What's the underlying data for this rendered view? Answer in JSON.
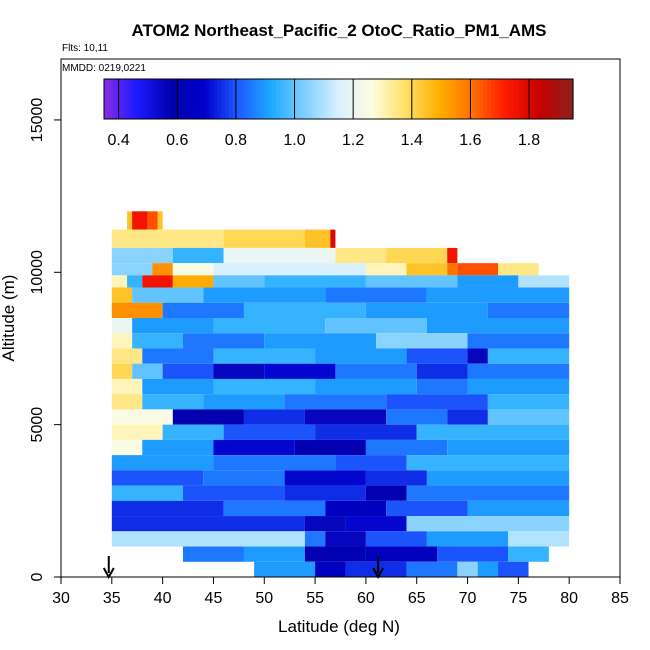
{
  "chart_data": {
    "type": "heatmap",
    "title": "ATOM2 Northeast_Pacific_2 OtoC_Ratio_PM1_AMS",
    "flights_label": "Flts: 10,11",
    "dates_label": "MMDD: 0219,0221",
    "xlabel": "Latitude (deg N)",
    "ylabel": "Altitude (m)",
    "xlim": [
      30,
      85
    ],
    "ylim": [
      0,
      17000
    ],
    "xticks": [
      "30",
      "35",
      "40",
      "45",
      "50",
      "55",
      "60",
      "65",
      "70",
      "75",
      "80",
      "85"
    ],
    "yticks": [
      "0",
      "5000",
      "10000",
      "15000"
    ],
    "colorbar": {
      "range": [
        0.35,
        1.95
      ],
      "tick_values": [
        0.4,
        0.6,
        0.8,
        1.0,
        1.2,
        1.4,
        1.6,
        1.8
      ],
      "tick_labels": [
        "0.4",
        "0.6",
        "0.8",
        "1.0",
        "1.2",
        "1.4",
        "1.6",
        "1.8"
      ],
      "colors": [
        "#8a2be2",
        "#1a1aff",
        "#0000aa",
        "#0000cc",
        "#1e5aff",
        "#1eaaff",
        "#7fcfff",
        "#d8f0ff",
        "#fffde0",
        "#ffe066",
        "#ffb000",
        "#ff7000",
        "#ff1a00",
        "#c80000",
        "#8b2020"
      ]
    },
    "arrows": [
      34.7,
      61.2
    ],
    "layers": [
      {
        "y0": 11400,
        "y1": 12000,
        "segments": [
          [
            36.5,
            40,
            1.45
          ],
          [
            37,
            38.5,
            1.75
          ],
          [
            38.5,
            39.5,
            1.65
          ]
        ]
      },
      {
        "y0": 10800,
        "y1": 11400,
        "segments": [
          [
            35,
            46,
            1.35
          ],
          [
            46,
            54,
            1.4
          ],
          [
            54,
            56.5,
            1.45
          ],
          [
            56.5,
            57,
            1.8
          ]
        ]
      },
      {
        "y0": 10300,
        "y1": 10800,
        "segments": [
          [
            35,
            41,
            1.05
          ],
          [
            41,
            46,
            0.95
          ],
          [
            46,
            57,
            1.2
          ],
          [
            57,
            62,
            1.35
          ],
          [
            62,
            68,
            1.4
          ],
          [
            68,
            69,
            1.75
          ]
        ]
      },
      {
        "y0": 9900,
        "y1": 10300,
        "segments": [
          [
            35,
            39,
            1.05
          ],
          [
            39,
            41,
            1.55
          ],
          [
            41,
            45,
            1.25
          ],
          [
            45,
            53,
            1.15
          ],
          [
            53,
            60,
            1.15
          ],
          [
            60,
            64,
            1.3
          ],
          [
            64,
            68,
            1.45
          ],
          [
            68,
            69,
            1.6
          ],
          [
            69,
            73,
            1.65
          ],
          [
            73,
            77,
            1.35
          ]
        ]
      },
      {
        "y0": 9500,
        "y1": 9900,
        "segments": [
          [
            35,
            36.5,
            1.3
          ],
          [
            36.5,
            38,
            0.95
          ],
          [
            38,
            41,
            1.75
          ],
          [
            41,
            45,
            1.5
          ],
          [
            45,
            50,
            1.0
          ],
          [
            50,
            60,
            0.95
          ],
          [
            60,
            69,
            1.0
          ],
          [
            69,
            75,
            0.9
          ],
          [
            75,
            80,
            1.1
          ]
        ]
      },
      {
        "y0": 9000,
        "y1": 9500,
        "segments": [
          [
            35,
            37,
            1.45
          ],
          [
            37,
            44,
            1.0
          ],
          [
            44,
            56,
            0.9
          ],
          [
            56,
            66,
            0.85
          ],
          [
            66,
            80,
            0.9
          ]
        ]
      },
      {
        "y0": 8500,
        "y1": 9000,
        "segments": [
          [
            35,
            40,
            1.55
          ],
          [
            40,
            48,
            0.85
          ],
          [
            48,
            60,
            0.95
          ],
          [
            60,
            72,
            0.9
          ],
          [
            72,
            80,
            0.85
          ]
        ]
      },
      {
        "y0": 8000,
        "y1": 8500,
        "segments": [
          [
            35,
            37,
            1.2
          ],
          [
            37,
            45,
            0.9
          ],
          [
            45,
            56,
            0.95
          ],
          [
            56,
            66,
            1.0
          ],
          [
            66,
            80,
            0.9
          ]
        ]
      },
      {
        "y0": 7500,
        "y1": 8000,
        "segments": [
          [
            35,
            37,
            1.3
          ],
          [
            37,
            42,
            0.95
          ],
          [
            42,
            50,
            0.85
          ],
          [
            50,
            61,
            0.9
          ],
          [
            61,
            70,
            1.05
          ],
          [
            70,
            80,
            0.85
          ]
        ]
      },
      {
        "y0": 7000,
        "y1": 7500,
        "segments": [
          [
            35,
            38,
            1.35
          ],
          [
            38,
            45,
            0.85
          ],
          [
            45,
            55,
            0.95
          ],
          [
            55,
            64,
            0.9
          ],
          [
            64,
            70,
            0.8
          ],
          [
            70,
            72,
            0.55
          ],
          [
            72,
            80,
            0.95
          ]
        ]
      },
      {
        "y0": 6500,
        "y1": 7000,
        "segments": [
          [
            35,
            37,
            1.4
          ],
          [
            37,
            40,
            1.0
          ],
          [
            40,
            45,
            0.8
          ],
          [
            45,
            50,
            0.55
          ],
          [
            50,
            57,
            0.7
          ],
          [
            57,
            65,
            0.85
          ],
          [
            65,
            70,
            0.75
          ],
          [
            70,
            80,
            0.85
          ]
        ]
      },
      {
        "y0": 6000,
        "y1": 6500,
        "segments": [
          [
            35,
            38,
            1.3
          ],
          [
            38,
            45,
            0.9
          ],
          [
            45,
            55,
            0.95
          ],
          [
            55,
            65,
            0.9
          ],
          [
            65,
            70,
            0.85
          ],
          [
            70,
            80,
            0.9
          ]
        ]
      },
      {
        "y0": 5500,
        "y1": 6000,
        "segments": [
          [
            35,
            38,
            1.35
          ],
          [
            38,
            44,
            0.95
          ],
          [
            44,
            52,
            0.9
          ],
          [
            52,
            62,
            0.85
          ],
          [
            62,
            72,
            0.8
          ],
          [
            72,
            80,
            0.95
          ]
        ]
      },
      {
        "y0": 5000,
        "y1": 5500,
        "segments": [
          [
            35,
            41,
            1.25
          ],
          [
            41,
            48,
            0.6
          ],
          [
            48,
            54,
            0.75
          ],
          [
            54,
            62,
            0.55
          ],
          [
            62,
            68,
            0.85
          ],
          [
            68,
            72,
            0.75
          ],
          [
            72,
            80,
            1.0
          ]
        ]
      },
      {
        "y0": 4500,
        "y1": 5000,
        "segments": [
          [
            35,
            40,
            1.3
          ],
          [
            40,
            46,
            0.95
          ],
          [
            46,
            55,
            0.8
          ],
          [
            55,
            65,
            0.75
          ],
          [
            65,
            80,
            0.95
          ]
        ]
      },
      {
        "y0": 4000,
        "y1": 4500,
        "segments": [
          [
            35,
            38,
            1.25
          ],
          [
            38,
            45,
            0.9
          ],
          [
            45,
            53,
            0.7
          ],
          [
            53,
            60,
            0.6
          ],
          [
            60,
            68,
            0.85
          ],
          [
            68,
            80,
            0.9
          ]
        ]
      },
      {
        "y0": 3500,
        "y1": 4000,
        "segments": [
          [
            35,
            45,
            0.9
          ],
          [
            45,
            57,
            0.85
          ],
          [
            57,
            64,
            0.8
          ],
          [
            64,
            80,
            0.95
          ]
        ]
      },
      {
        "y0": 3000,
        "y1": 3500,
        "segments": [
          [
            35,
            44,
            0.8
          ],
          [
            44,
            52,
            0.85
          ],
          [
            52,
            60,
            0.7
          ],
          [
            60,
            66,
            0.75
          ],
          [
            66,
            80,
            0.9
          ]
        ]
      },
      {
        "y0": 2500,
        "y1": 3000,
        "segments": [
          [
            35,
            42,
            0.95
          ],
          [
            42,
            52,
            0.8
          ],
          [
            52,
            60,
            0.75
          ],
          [
            60,
            64,
            0.6
          ],
          [
            64,
            80,
            0.85
          ]
        ]
      },
      {
        "y0": 2000,
        "y1": 2500,
        "segments": [
          [
            35,
            46,
            0.75
          ],
          [
            46,
            56,
            0.85
          ],
          [
            56,
            62,
            0.65
          ],
          [
            62,
            70,
            0.8
          ],
          [
            70,
            80,
            0.9
          ]
        ]
      },
      {
        "y0": 1500,
        "y1": 2000,
        "segments": [
          [
            35,
            54,
            0.75
          ],
          [
            54,
            58,
            0.55
          ],
          [
            58,
            64,
            0.7
          ],
          [
            64,
            80,
            1.05
          ]
        ]
      },
      {
        "y0": 1000,
        "y1": 1500,
        "segments": [
          [
            35,
            54,
            1.1
          ],
          [
            54,
            56,
            0.85
          ],
          [
            56,
            60,
            0.55
          ],
          [
            60,
            66,
            0.8
          ],
          [
            66,
            74,
            0.9
          ],
          [
            74,
            80,
            1.1
          ]
        ]
      },
      {
        "y0": 500,
        "y1": 1000,
        "segments": [
          [
            42,
            48,
            0.85
          ],
          [
            48,
            54,
            0.9
          ],
          [
            54,
            60,
            0.6
          ],
          [
            60,
            67,
            0.65
          ],
          [
            67,
            74,
            0.8
          ],
          [
            74,
            78,
            0.95
          ]
        ]
      },
      {
        "y0": 0,
        "y1": 500,
        "segments": [
          [
            49,
            55,
            0.9
          ],
          [
            55,
            58,
            0.65
          ],
          [
            58,
            64,
            0.75
          ],
          [
            64,
            69,
            0.85
          ],
          [
            69,
            71,
            1.05
          ],
          [
            71,
            73,
            0.9
          ],
          [
            73,
            76,
            0.8
          ]
        ]
      }
    ]
  }
}
